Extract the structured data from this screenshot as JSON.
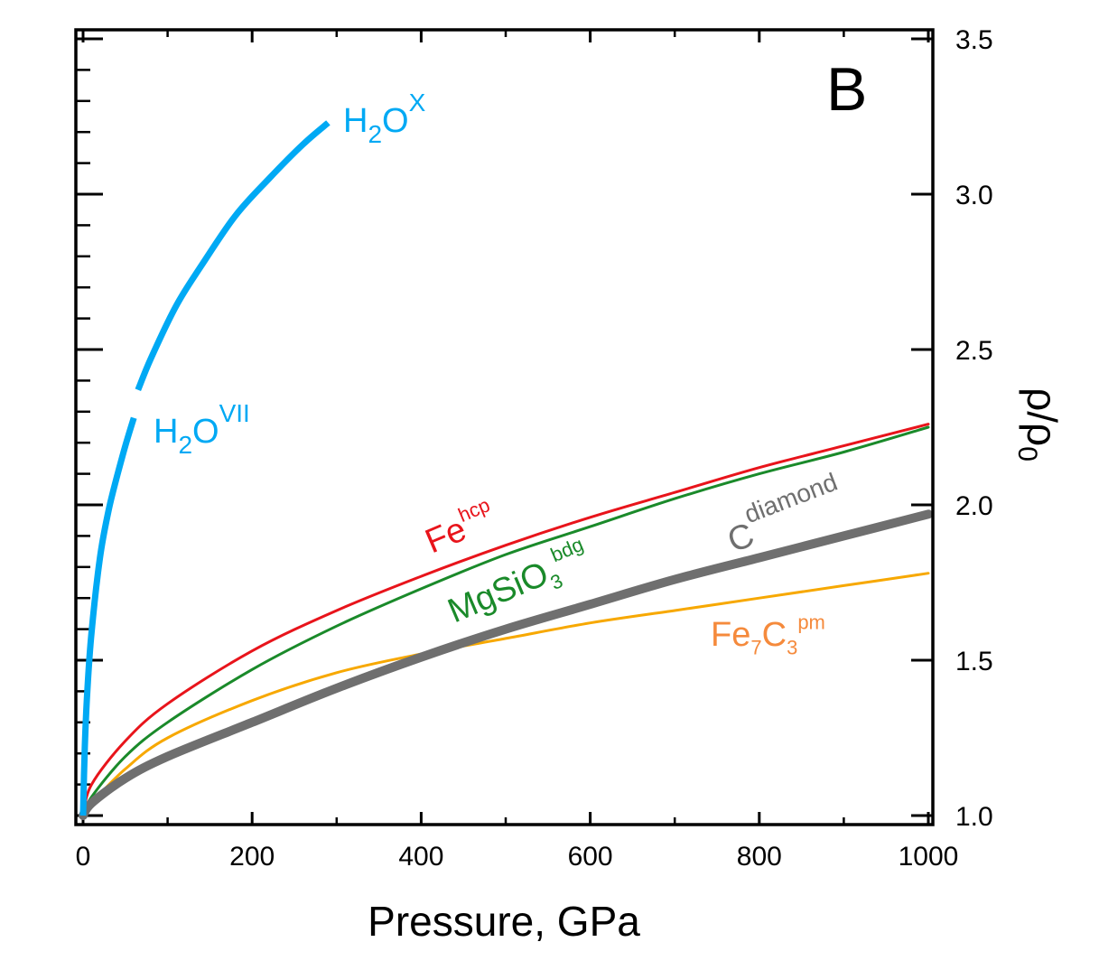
{
  "chart_data": {
    "type": "line",
    "panel_label": "B",
    "xlabel": "Pressure, GPa",
    "ylabel": "ρ/ρ0",
    "ylabel_parts": {
      "main": "ρ/ρ",
      "sub": "0"
    },
    "xlim": [
      0,
      1000
    ],
    "ylim": [
      1.0,
      3.5
    ],
    "xticks": [
      "0",
      "200",
      "400",
      "600",
      "800",
      "1000"
    ],
    "xtick_values": [
      0,
      200,
      400,
      600,
      800,
      1000
    ],
    "yticks": [
      "1.0",
      "1.5",
      "2.0",
      "2.5",
      "3.0",
      "3.5"
    ],
    "ytick_values": [
      1.0,
      1.5,
      2.0,
      2.5,
      3.0,
      3.5
    ],
    "y_axis_side": "right",
    "grid": false,
    "legend": "none (inline labels)",
    "series": [
      {
        "name": "H2O VII",
        "label": {
          "base": "H",
          "sub": "2",
          "mid": "O",
          "sup": "VII"
        },
        "color": "#00a9f4",
        "x": [
          0,
          2,
          5,
          10,
          20,
          30,
          40,
          50,
          60
        ],
        "y": [
          1.0,
          1.22,
          1.4,
          1.59,
          1.83,
          1.98,
          2.09,
          2.19,
          2.28
        ]
      },
      {
        "name": "H2O X",
        "label": {
          "base": "H",
          "sub": "2",
          "mid": "O",
          "sup": "X"
        },
        "color": "#00a9f4",
        "x": [
          65,
          80,
          110,
          140,
          180,
          220,
          260,
          290
        ],
        "y": [
          2.37,
          2.47,
          2.64,
          2.77,
          2.93,
          3.05,
          3.16,
          3.23
        ]
      },
      {
        "name": "Fe hcp",
        "label": {
          "base": "Fe",
          "sup": "hcp"
        },
        "color": "#e8141b",
        "x": [
          0,
          10,
          50,
          100,
          200,
          300,
          400,
          500,
          600,
          700,
          800,
          900,
          1000
        ],
        "y": [
          1.0,
          1.1,
          1.24,
          1.36,
          1.53,
          1.66,
          1.77,
          1.87,
          1.96,
          2.04,
          2.12,
          2.19,
          2.26
        ]
      },
      {
        "name": "MgSiO3 bdg",
        "label": {
          "base": "MgSiO",
          "sub": "3",
          "sup": "bdg"
        },
        "color": "#1a8a2a",
        "x": [
          0,
          10,
          50,
          100,
          200,
          300,
          400,
          500,
          600,
          700,
          800,
          900,
          1000
        ],
        "y": [
          1.0,
          1.06,
          1.19,
          1.3,
          1.47,
          1.61,
          1.73,
          1.84,
          1.93,
          2.02,
          2.1,
          2.17,
          2.25
        ]
      },
      {
        "name": "C diamond",
        "label": {
          "base": "C",
          "sup": "diamond"
        },
        "color": "#6f6f6f",
        "x": [
          0,
          10,
          50,
          100,
          200,
          300,
          400,
          500,
          600,
          700,
          800,
          900,
          1000
        ],
        "y": [
          1.0,
          1.04,
          1.12,
          1.19,
          1.3,
          1.41,
          1.51,
          1.6,
          1.68,
          1.76,
          1.83,
          1.9,
          1.97
        ]
      },
      {
        "name": "Fe7C3 pm",
        "label": {
          "base": "Fe",
          "sub": "7",
          "mid": "C",
          "sub2": "3",
          "sup": "pm"
        },
        "color": "#f7a800",
        "label_color": "#f58a3c",
        "x": [
          0,
          10,
          50,
          100,
          200,
          300,
          400,
          500,
          600,
          700,
          800,
          900,
          1000
        ],
        "y": [
          1.0,
          1.04,
          1.15,
          1.25,
          1.37,
          1.46,
          1.52,
          1.57,
          1.62,
          1.66,
          1.7,
          1.74,
          1.78
        ]
      }
    ]
  }
}
